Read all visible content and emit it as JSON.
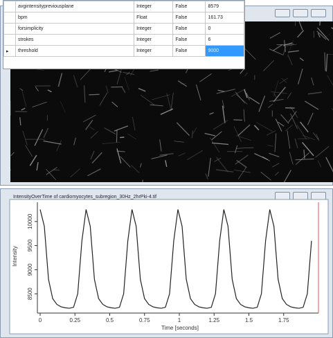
{
  "table": {
    "rows": [
      [
        "avgintensitypreviousplane",
        "Integer",
        "False",
        "8579"
      ],
      [
        "bpm",
        "Float",
        "False",
        "161.73"
      ],
      [
        "forsimplicity",
        "Integer",
        "False",
        "0"
      ],
      [
        "strokes",
        "Integer",
        "False",
        "6"
      ],
      [
        "threshold",
        "Integer",
        "False",
        "9000"
      ]
    ]
  },
  "plot_window": {
    "title": "IntensityOverTime of cardiomyocytes_subregion_30Hz_2hrPki-4.tif"
  },
  "chart_data": {
    "type": "line",
    "x_label": "Time [seconds]",
    "y_label": "Intensity",
    "x": [
      0,
      0.03,
      0.06,
      0.09,
      0.12,
      0.15,
      0.18,
      0.21,
      0.24,
      0.27,
      0.3,
      0.33,
      0.36,
      0.39,
      0.42,
      0.45,
      0.48,
      0.51,
      0.54,
      0.57,
      0.6,
      0.63,
      0.66,
      0.69,
      0.72,
      0.75,
      0.78,
      0.81,
      0.84,
      0.87,
      0.9,
      0.93,
      0.96,
      0.99,
      1.02,
      1.05,
      1.08,
      1.11,
      1.14,
      1.17,
      1.2,
      1.23,
      1.26,
      1.29,
      1.32,
      1.35,
      1.38,
      1.41,
      1.44,
      1.47,
      1.5,
      1.53,
      1.56,
      1.59,
      1.62,
      1.65,
      1.68,
      1.71,
      1.74,
      1.77,
      1.8,
      1.83,
      1.86,
      1.89,
      1.92,
      1.95
    ],
    "series": [
      {
        "color": "#222222",
        "values": [
          10250,
          9900,
          8800,
          8400,
          8280,
          8230,
          8210,
          8200,
          8220,
          8500,
          9600,
          10250,
          9900,
          8800,
          8400,
          8280,
          8230,
          8210,
          8200,
          8220,
          8500,
          9600,
          10250,
          9900,
          8800,
          8400,
          8280,
          8230,
          8210,
          8200,
          8220,
          8500,
          9600,
          10250,
          9900,
          8800,
          8400,
          8280,
          8230,
          8210,
          8200,
          8220,
          8500,
          9600,
          10250,
          9900,
          8800,
          8400,
          8280,
          8230,
          8210,
          8200,
          8220,
          8500,
          9600,
          10250,
          9900,
          8800,
          8400,
          8280,
          8230,
          8210,
          8200,
          8220,
          8500,
          9600
        ]
      }
    ],
    "xlim": [
      0,
      2
    ],
    "ylim": [
      8100,
      10400
    ],
    "xticks": [
      0,
      0.25,
      0.5,
      0.75,
      1,
      1.25,
      1.5,
      1.75
    ],
    "yticks": [
      8500,
      9000,
      9500,
      10000
    ]
  }
}
